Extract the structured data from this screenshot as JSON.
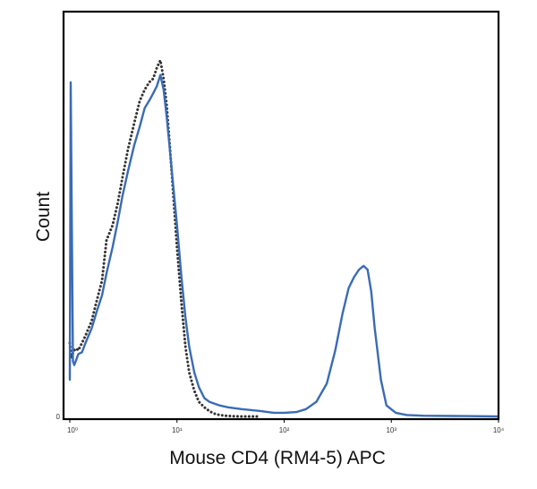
{
  "chart_data": {
    "type": "line",
    "title": "",
    "xlabel": "Mouse CD4 (RM4-5) APC",
    "ylabel": "Count",
    "x_scale": "log",
    "xlim": [
      1,
      10000
    ],
    "ylim": [
      0,
      100
    ],
    "x_tick_labels": [
      "10⁰",
      "10¹",
      "10²",
      "10³",
      "10⁴"
    ],
    "x_tick_values": [
      1,
      10,
      100,
      1000,
      10000
    ],
    "y_tick_labels": [
      "0"
    ],
    "y_tick_values": [
      0
    ],
    "grid": false,
    "legend": "none",
    "series": [
      {
        "style": "dotted",
        "color": "#333333",
        "x": [
          1.0,
          1.03,
          1.06,
          1.1,
          1.15,
          1.2,
          1.3,
          1.4,
          1.6,
          1.8,
          2.0,
          2.2,
          2.5,
          2.8,
          3.1,
          3.5,
          4.0,
          4.5,
          5.0,
          5.5,
          6.0,
          6.5,
          7.0,
          7.5,
          8.0,
          8.5,
          9.0,
          10.0,
          11.0,
          12.0,
          13.0,
          14.5,
          16.0,
          18.0,
          20.0,
          22.0,
          25.0,
          28.0,
          32.0,
          40.0,
          60.0
        ],
        "y": [
          20,
          16,
          17,
          18,
          18.5,
          18,
          20,
          22,
          26,
          32,
          37,
          48,
          52,
          58,
          65,
          73,
          80,
          86,
          89,
          91,
          92,
          95,
          97,
          92,
          85,
          75,
          65,
          46,
          31,
          19,
          12,
          7,
          4,
          2.5,
          1.5,
          0.8,
          0.4,
          0.2,
          0.1,
          0,
          0
        ]
      },
      {
        "style": "solid",
        "color": "#3a6bb5",
        "x": [
          1.0,
          1.02,
          1.04,
          1.07,
          1.1,
          1.15,
          1.2,
          1.3,
          1.4,
          1.6,
          1.8,
          2.0,
          2.2,
          2.5,
          2.8,
          3.1,
          3.5,
          4.0,
          4.5,
          5.0,
          5.5,
          6.0,
          6.5,
          7.0,
          7.5,
          8.0,
          8.5,
          9.0,
          10.0,
          11.0,
          12.0,
          13.0,
          14.5,
          16.0,
          18.0,
          20.0,
          25.0,
          30.0,
          40.0,
          60.0,
          80.0,
          100.0,
          130.0,
          160.0,
          200.0,
          250.0,
          300.0,
          350.0,
          400.0,
          450.0,
          500.0,
          550.0,
          600.0,
          650.0,
          700.0,
          800.0,
          900.0,
          1100.0,
          1400.0,
          2000.0,
          5000.0,
          10000.0
        ],
        "y": [
          10,
          91,
          60,
          15,
          14,
          15.5,
          17,
          17.5,
          20,
          24,
          29,
          33,
          39,
          46,
          53,
          60,
          67,
          74,
          79,
          84,
          86,
          88,
          90,
          93,
          89,
          82,
          74,
          66,
          52,
          38,
          27,
          19,
          12,
          8,
          5,
          4,
          3,
          2.5,
          2,
          1.5,
          1,
          1,
          1.2,
          2,
          4,
          9,
          18,
          28,
          35,
          38,
          40,
          41,
          40,
          34,
          24,
          10,
          3,
          1,
          0.4,
          0.2,
          0.1,
          0
        ]
      }
    ]
  }
}
